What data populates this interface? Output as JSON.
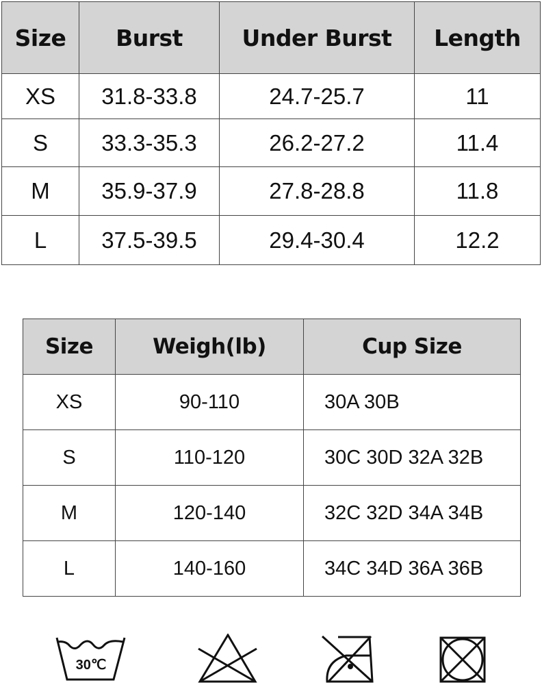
{
  "table1": {
    "headers": [
      "Size",
      "Burst",
      "Under Burst",
      "Length"
    ],
    "rows": [
      [
        "XS",
        "31.8-33.8",
        "24.7-25.7",
        "11"
      ],
      [
        "S",
        "33.3-35.3",
        "26.2-27.2",
        "11.4"
      ],
      [
        "M",
        "35.9-37.9",
        "27.8-28.8",
        "11.8"
      ],
      [
        "L",
        "37.5-39.5",
        "29.4-30.4",
        "12.2"
      ]
    ]
  },
  "table2": {
    "headers": [
      "Size",
      "Weigh(lb)",
      "Cup Size"
    ],
    "rows": [
      [
        "XS",
        "90-110",
        "30A 30B"
      ],
      [
        "S",
        "110-120",
        "30C 30D 32A 32B"
      ],
      [
        "M",
        "120-140",
        "32C 32D 34A 34B"
      ],
      [
        "L",
        "140-160",
        "34C 34D 36A 36B"
      ]
    ]
  },
  "care": {
    "wash_temp": "30℃",
    "icons": [
      "wash-30c-icon",
      "do-not-bleach-icon",
      "do-not-iron-icon",
      "do-not-tumble-dry-icon"
    ]
  },
  "colors": {
    "header_bg": "#d4d4d4",
    "border": "#444444"
  }
}
